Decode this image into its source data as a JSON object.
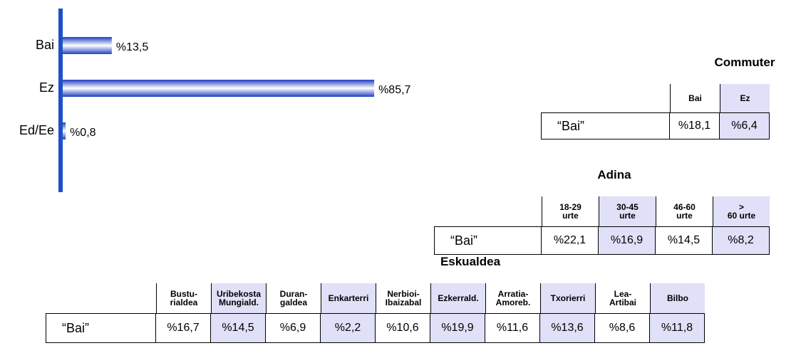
{
  "chart_data": {
    "type": "bar",
    "orientation": "horizontal",
    "categories": [
      "Bai",
      "Ez",
      "Ed/Ee"
    ],
    "values": [
      13.5,
      85.7,
      0.8
    ],
    "value_labels": [
      "%13,5",
      "%85,7",
      "%0,8"
    ],
    "color": "#1f3fbf"
  },
  "tables": [
    {
      "title": "Commuter",
      "columns": [
        "Bai",
        "Ez"
      ],
      "row_label": "“Bai”",
      "values": [
        "%18,1",
        "%6,4"
      ]
    },
    {
      "title": "Adina",
      "columns": [
        "18-29\nurte",
        "30-45\nurte",
        "46-60\nurte",
        ">\n60 urte"
      ],
      "row_label": "“Bai”",
      "values": [
        "%22,1",
        "%16,9",
        "%14,5",
        "%8,2"
      ]
    },
    {
      "title": "Eskualdea",
      "columns": [
        "Bustu-\nrialdea",
        "Uribekosta\nMungiald.",
        "Duran-\ngaldea",
        "Enkarterri",
        "Nerbioi-\nIbaizabal",
        "Ezkerrald.",
        "Arratia-\nAmoreb.",
        "Txorierri",
        "Lea-\nArtibai",
        "Bilbo"
      ],
      "row_label": "“Bai”",
      "values": [
        "%16,7",
        "%14,5",
        "%6,9",
        "%2,2",
        "%10,6",
        "%19,9",
        "%11,6",
        "%13,6",
        "%8,6",
        "%11,8"
      ]
    }
  ]
}
